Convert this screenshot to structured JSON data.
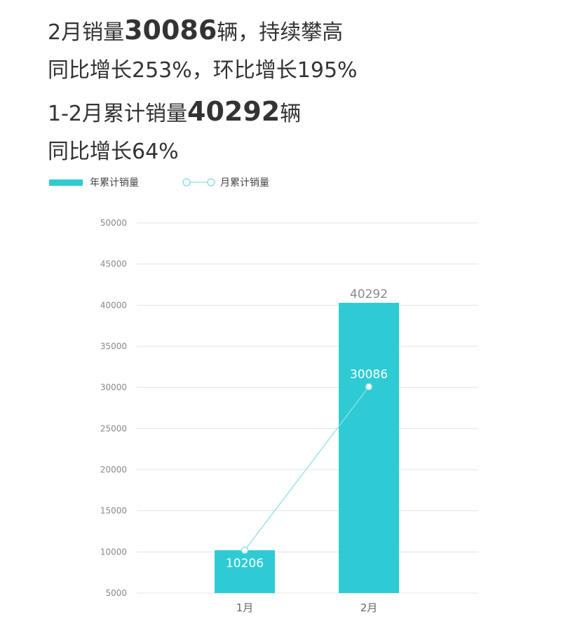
{
  "headline": {
    "line1": {
      "pre": "2月销量",
      "num": "30086",
      "post": "辆，持续攀高"
    },
    "line2": "同比增长253%，环比增长195%",
    "line3": {
      "pre": "1-2月累计销量",
      "num": "40292",
      "post": "辆"
    },
    "line4": "同比增长64%"
  },
  "colors": {
    "bar": "#2ecbd5",
    "line": "#8fdfe6",
    "grid": "#e3e3e3",
    "axis_text": "#888888"
  },
  "chart_data": {
    "type": "bar",
    "categories": [
      "1月",
      "2月"
    ],
    "ylim": [
      5000,
      50000
    ],
    "yticks": [
      5000,
      10000,
      15000,
      20000,
      25000,
      30000,
      35000,
      40000,
      45000,
      50000
    ],
    "grid": true,
    "legend_position": "top-left",
    "series": [
      {
        "name": "年累计销量",
        "type": "bar",
        "values": [
          10206,
          40292
        ]
      },
      {
        "name": "月累计销量",
        "type": "line",
        "values": [
          10206,
          30086
        ]
      }
    ],
    "data_labels": {
      "bar": [
        "",
        "40292"
      ],
      "line": [
        "10206",
        "30086"
      ]
    }
  }
}
